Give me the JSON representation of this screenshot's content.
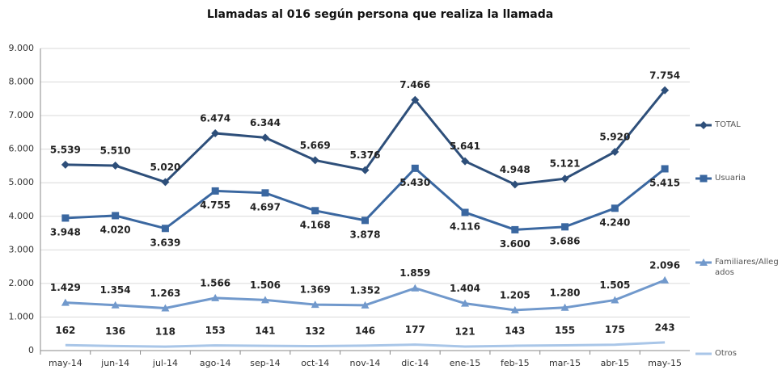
{
  "chart_data": {
    "type": "line",
    "title": "Llamadas al 016 según persona que realiza la llamada",
    "categories": [
      "may-14",
      "jun-14",
      "jul-14",
      "ago-14",
      "sep-14",
      "oct-14",
      "nov-14",
      "dic-14",
      "ene-15",
      "feb-15",
      "mar-15",
      "abr-15",
      "may-15"
    ],
    "series": [
      {
        "name": "TOTAL",
        "color": "#2e4f7a",
        "marker": "diamond",
        "label_position": "above",
        "values": [
          5539,
          5510,
          5020,
          6474,
          6344,
          5669,
          5376,
          7466,
          5641,
          4948,
          5121,
          5920,
          7754
        ],
        "value_labels": [
          "5.539",
          "5.510",
          "5.020",
          "6.474",
          "6.344",
          "5.669",
          "5.376",
          "7.466",
          "5.641",
          "4.948",
          "5.121",
          "5.920",
          "7.754"
        ]
      },
      {
        "name": "Usuaria",
        "color": "#3a67a0",
        "marker": "square",
        "label_position": "below",
        "values": [
          3948,
          4020,
          3639,
          4755,
          4697,
          4168,
          3878,
          5430,
          4116,
          3600,
          3686,
          4240,
          5415
        ],
        "value_labels": [
          "3.948",
          "4.020",
          "3.639",
          "4.755",
          "4.697",
          "4.168",
          "3.878",
          "5.430",
          "4.116",
          "3.600",
          "3.686",
          "4.240",
          "5.415"
        ]
      },
      {
        "name": "Familiares/Allegados",
        "color": "#7199cc",
        "marker": "triangle",
        "label_position": "above",
        "values": [
          1429,
          1354,
          1263,
          1566,
          1506,
          1369,
          1352,
          1859,
          1404,
          1205,
          1280,
          1505,
          2096
        ],
        "value_labels": [
          "1.429",
          "1.354",
          "1.263",
          "1.566",
          "1.506",
          "1.369",
          "1.352",
          "1.859",
          "1.404",
          "1.205",
          "1.280",
          "1.505",
          "2.096"
        ]
      },
      {
        "name": "Otros",
        "color": "#a9c6e8",
        "marker": "none",
        "label_position": "above",
        "values": [
          162,
          136,
          118,
          153,
          141,
          132,
          146,
          177,
          121,
          143,
          155,
          175,
          243
        ],
        "value_labels": [
          "162",
          "136",
          "118",
          "153",
          "141",
          "132",
          "146",
          "177",
          "121",
          "143",
          "155",
          "175",
          "243"
        ]
      }
    ],
    "ylim": [
      0,
      9000
    ],
    "yticks": [
      0,
      {
        "value": 1000,
        "label": "1.000"
      },
      {
        "value": 2000,
        "label": "2.000"
      },
      {
        "value": 3000,
        "label": "3.000"
      },
      {
        "value": 4000,
        "label": "4.000"
      },
      {
        "value": 5000,
        "label": "5.000"
      },
      {
        "value": 6000,
        "label": "6.000"
      },
      {
        "value": 7000,
        "label": "7.000"
      },
      {
        "value": 8000,
        "label": "8.000"
      },
      {
        "value": 9000,
        "label": "9.000"
      }
    ],
    "grid": true,
    "legend": "right"
  }
}
